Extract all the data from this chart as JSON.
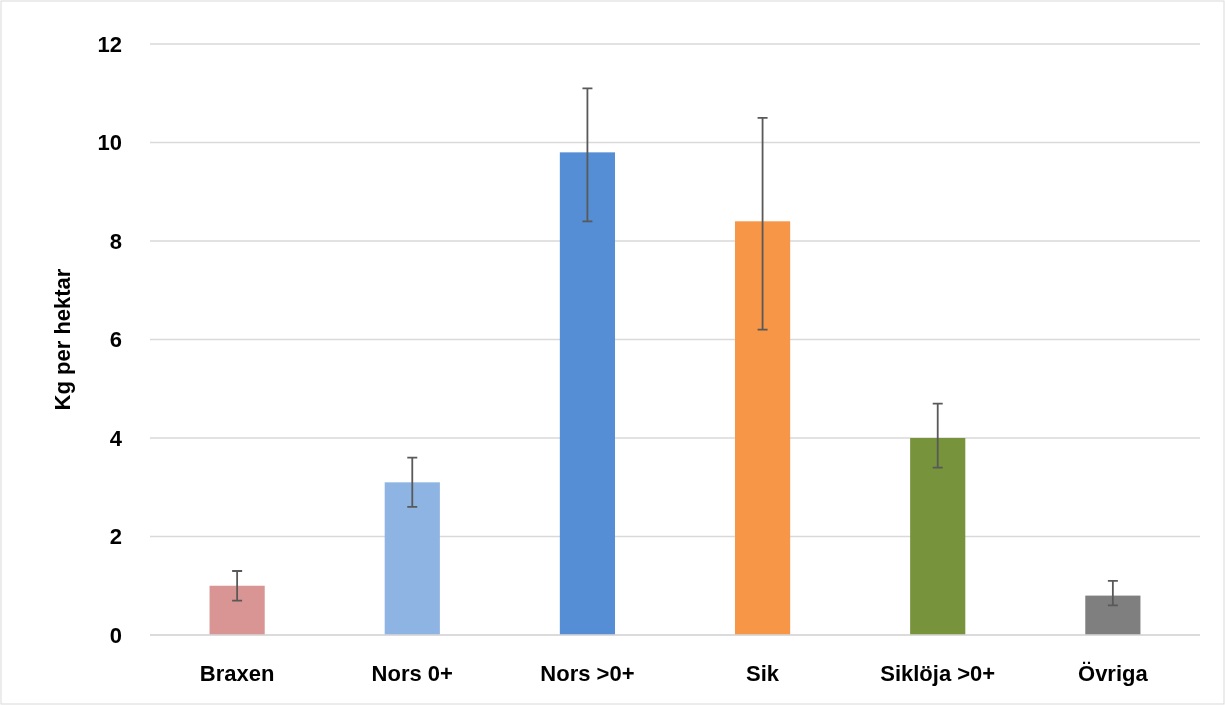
{
  "chart_data": {
    "type": "bar",
    "ylabel": "Kg per hektar",
    "categories": [
      "Braxen",
      "Nors 0+",
      "Nors >0+",
      "Sik",
      "Siklöja >0+",
      "Övriga"
    ],
    "values": [
      1.0,
      3.1,
      9.8,
      8.4,
      4.0,
      0.8
    ],
    "colors": [
      "#d99594",
      "#8eb4e3",
      "#558ed5",
      "#f79646",
      "#77933c",
      "#7f7f7f"
    ],
    "errors": [
      [
        0.7,
        1.3
      ],
      [
        2.6,
        3.6
      ],
      [
        8.4,
        11.1
      ],
      [
        6.2,
        10.5
      ],
      [
        3.4,
        4.7
      ],
      [
        0.6,
        1.1
      ]
    ],
    "ylim": [
      0,
      12
    ],
    "yticks": [
      0,
      2,
      4,
      6,
      8,
      10,
      12
    ],
    "grid": "y"
  }
}
